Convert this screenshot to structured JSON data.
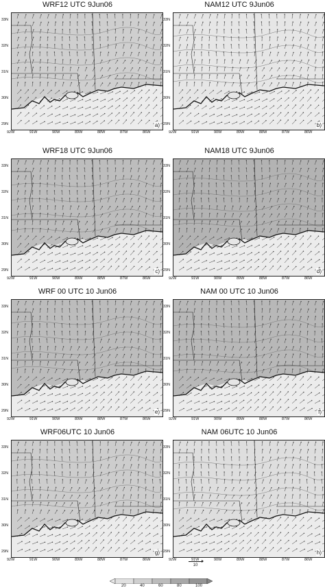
{
  "panels": [
    {
      "title": "WRF12 UTC  9Jun06",
      "letter": "a)",
      "tone": "#cfcfcf"
    },
    {
      "title": "NAM12 UTC 9Jun06",
      "letter": "b)",
      "tone": "#e6e6e6"
    },
    {
      "title": "WRF18 UTC 9Jun06",
      "letter": "c)",
      "tone": "#bdbdbd"
    },
    {
      "title": "NAM18 UTC  9Jun06",
      "letter": "d)",
      "tone": "#b3b3b3"
    },
    {
      "title": "WRF 00 UTC 10 Jun06",
      "letter": "e)",
      "tone": "#bcbcbc"
    },
    {
      "title": "NAM 00 UTC 10 Jun06",
      "letter": "f)",
      "tone": "#b8b8b8"
    },
    {
      "title": "WRF06UTC 10 Jun06",
      "letter": "g)",
      "tone": "#cdcdcd"
    },
    {
      "title": "NAM  06UTC 10 Jun06",
      "letter": "h)",
      "tone": "#dedede"
    }
  ],
  "lat_labels": [
    "33N",
    "32N",
    "31N",
    "30N",
    "29N"
  ],
  "lon_labels": [
    "92W",
    "91W",
    "90W",
    "89W",
    "88W",
    "87W",
    "86W"
  ],
  "vector_scale": {
    "label": "10"
  },
  "colorbar": {
    "labels": [
      "20",
      "40",
      "60",
      "80",
      "100"
    ]
  },
  "colors": {
    "land": "#c9c9c9",
    "gulf": "#ececec",
    "coast": "#111111",
    "arrow": "#333333"
  }
}
